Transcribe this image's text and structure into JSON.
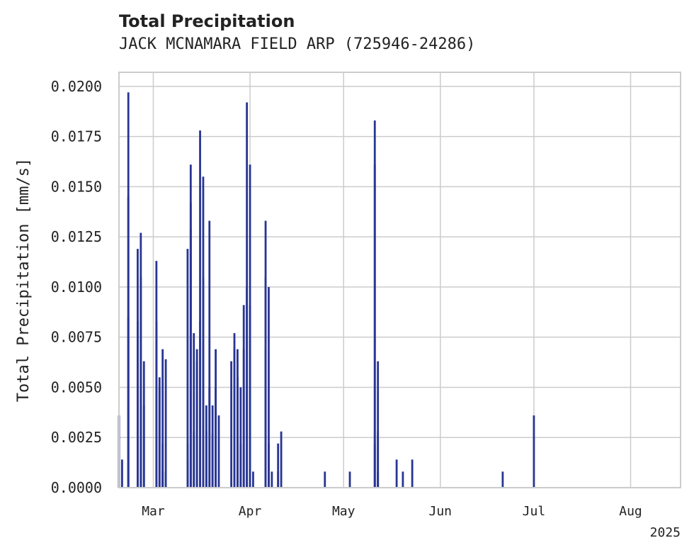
{
  "chart_data": {
    "type": "bar",
    "title": "Total Precipitation",
    "subtitle": "JACK MCNAMARA FIELD ARP (725946-24286)",
    "ylabel": "Total Precipitation [mm/s]",
    "xlabel": "",
    "year_label": "2025",
    "x_ticks": [
      "Mar",
      "Apr",
      "May",
      "Jun",
      "Jul",
      "Aug"
    ],
    "x_tick_dates": [
      "2025-03-01",
      "2025-04-01",
      "2025-05-01",
      "2025-06-01",
      "2025-07-01",
      "2025-08-01"
    ],
    "y_ticks": [
      "0.0000",
      "0.0025",
      "0.0050",
      "0.0075",
      "0.0100",
      "0.0125",
      "0.0150",
      "0.0175",
      "0.0200"
    ],
    "xlim": [
      "2025-02-18",
      "2025-08-17"
    ],
    "ylim": [
      0,
      0.0207
    ],
    "grid": true,
    "color": "#283593",
    "points": [
      [
        "2025-02-18",
        0.0036
      ],
      [
        "2025-02-19",
        0.0014
      ],
      [
        "2025-02-21",
        0.0197
      ],
      [
        "2025-02-21",
        0.0145
      ],
      [
        "2025-02-21",
        0.0085
      ],
      [
        "2025-02-24",
        0.0083
      ],
      [
        "2025-02-24",
        0.0119
      ],
      [
        "2025-02-25",
        0.0105
      ],
      [
        "2025-02-25",
        0.0127
      ],
      [
        "2025-02-26",
        0.0063
      ],
      [
        "2025-02-26",
        0.0041
      ],
      [
        "2025-03-02",
        0.0113
      ],
      [
        "2025-03-02",
        0.0083
      ],
      [
        "2025-03-03",
        0.005
      ],
      [
        "2025-03-03",
        0.0055
      ],
      [
        "2025-03-04",
        0.0069
      ],
      [
        "2025-03-04",
        0.0022
      ],
      [
        "2025-03-04",
        0.0008
      ],
      [
        "2025-03-05",
        0.0064
      ],
      [
        "2025-03-05",
        0.0008
      ],
      [
        "2025-03-12",
        0.0014
      ],
      [
        "2025-03-12",
        0.0022
      ],
      [
        "2025-03-12",
        0.0119
      ],
      [
        "2025-03-13",
        0.0142
      ],
      [
        "2025-03-13",
        0.0161
      ],
      [
        "2025-03-13",
        0.0129
      ],
      [
        "2025-03-14",
        0.0077
      ],
      [
        "2025-03-14",
        0.0028
      ],
      [
        "2025-03-15",
        0.0069
      ],
      [
        "2025-03-15",
        0.0063
      ],
      [
        "2025-03-16",
        0.0083
      ],
      [
        "2025-03-16",
        0.0178
      ],
      [
        "2025-03-17",
        0.0105
      ],
      [
        "2025-03-17",
        0.0155
      ],
      [
        "2025-03-18",
        0.0041
      ],
      [
        "2025-03-18",
        0.0028
      ],
      [
        "2025-03-19",
        0.0133
      ],
      [
        "2025-03-19",
        0.005
      ],
      [
        "2025-03-20",
        0.0041
      ],
      [
        "2025-03-20",
        0.0027
      ],
      [
        "2025-03-21",
        0.0069
      ],
      [
        "2025-03-21",
        0.005
      ],
      [
        "2025-03-22",
        0.0036
      ],
      [
        "2025-03-26",
        0.0063
      ],
      [
        "2025-03-27",
        0.0069
      ],
      [
        "2025-03-27",
        0.0077
      ],
      [
        "2025-03-28",
        0.0055
      ],
      [
        "2025-03-28",
        0.0069
      ],
      [
        "2025-03-29",
        0.0022
      ],
      [
        "2025-03-29",
        0.005
      ],
      [
        "2025-03-30",
        0.0069
      ],
      [
        "2025-03-30",
        0.0091
      ],
      [
        "2025-03-31",
        0.01
      ],
      [
        "2025-03-31",
        0.0192
      ],
      [
        "2025-04-01",
        0.0161
      ],
      [
        "2025-04-01",
        0.0091
      ],
      [
        "2025-04-02",
        0.0008
      ],
      [
        "2025-04-06",
        0.0069
      ],
      [
        "2025-04-06",
        0.0105
      ],
      [
        "2025-04-06",
        0.0133
      ],
      [
        "2025-04-07",
        0.01
      ],
      [
        "2025-04-07",
        0.0022
      ],
      [
        "2025-04-08",
        0.0008
      ],
      [
        "2025-04-10",
        0.0008
      ],
      [
        "2025-04-10",
        0.0022
      ],
      [
        "2025-04-11",
        0.0028
      ],
      [
        "2025-04-25",
        0.0008
      ],
      [
        "2025-05-03",
        0.0008
      ],
      [
        "2025-05-11",
        0.0022
      ],
      [
        "2025-05-11",
        0.0161
      ],
      [
        "2025-05-11",
        0.0183
      ],
      [
        "2025-05-12",
        0.0063
      ],
      [
        "2025-05-12",
        0.0028
      ],
      [
        "2025-05-12",
        0.0008
      ],
      [
        "2025-05-18",
        0.0014
      ],
      [
        "2025-05-20",
        0.0008
      ],
      [
        "2025-05-23",
        0.0014
      ],
      [
        "2025-06-21",
        0.0008
      ],
      [
        "2025-07-01",
        0.0036
      ]
    ]
  }
}
